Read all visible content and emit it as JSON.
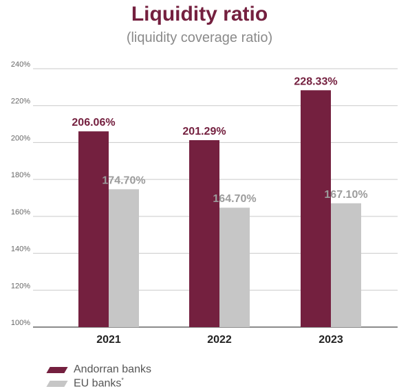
{
  "chart_data": {
    "type": "bar",
    "title": "Liquidity ratio",
    "subtitle": "(liquidity coverage ratio)",
    "categories": [
      "2021",
      "2022",
      "2023"
    ],
    "series": [
      {
        "name": "Andorran banks",
        "color": "#74203f",
        "values": [
          206.06,
          201.29,
          228.33
        ],
        "labels": [
          "206.06%",
          "201.29%",
          "228.33%"
        ]
      },
      {
        "name": "EU banks",
        "color": "#c6c6c6",
        "values": [
          174.7,
          164.7,
          167.1
        ],
        "labels": [
          "174.70%",
          "164.70%",
          "167.10%"
        ]
      }
    ],
    "ylim": [
      100,
      240
    ],
    "yticks": [
      "100%",
      "120%",
      "140%",
      "160%",
      "180%",
      "200%",
      "220%",
      "240%"
    ],
    "ytick_values": [
      100,
      120,
      140,
      160,
      180,
      200,
      220,
      240
    ],
    "grid": true,
    "legend": {
      "position": "bottom-left",
      "note_mark": "*"
    }
  }
}
